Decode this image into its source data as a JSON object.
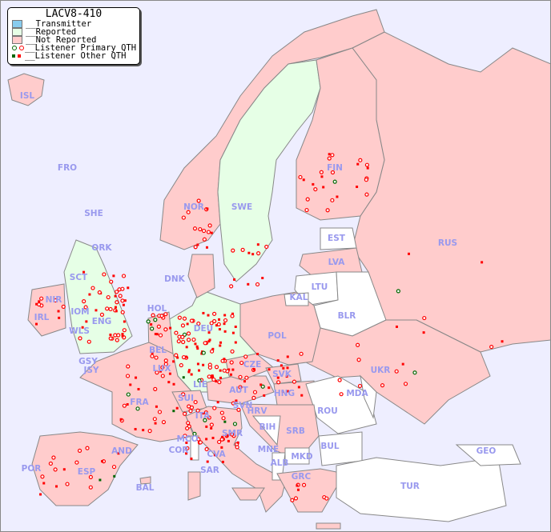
{
  "legend": {
    "title": "LACV8-410",
    "items": [
      {
        "label": "__Transmitter",
        "color": "#88ccee"
      },
      {
        "label": "__Reported",
        "color": "#e6ffe6"
      },
      {
        "label": "__Not Reported",
        "color": "#ffcccc"
      },
      {
        "label": "__Listener Primary QTH",
        "colors": [
          "#006600",
          "#ff0000"
        ]
      },
      {
        "label": "__Listener Other QTH",
        "colors": [
          "#006600",
          "#ff0000"
        ]
      }
    ]
  },
  "colors": {
    "sea": "#eeeeff",
    "reported": "#e6ffe6",
    "not_reported": "#ffcccc",
    "no_data": "#ffffff",
    "listener": "#ff0000",
    "listener_alt": "#006600",
    "label": "#9999ee"
  },
  "countries": [
    "ISL",
    "FRO",
    "SHE",
    "ORK",
    "SCT",
    "NIR",
    "IRL",
    "IOM",
    "ENG",
    "WLS",
    "GSY",
    "JSY",
    "HOL",
    "BEL",
    "LUX",
    "DNK",
    "DEU",
    "LIE",
    "SUI",
    "FRA",
    "AND",
    "ESP",
    "POR",
    "BAL",
    "MCO",
    "COR",
    "SAR",
    "ITA",
    "SMR",
    "CVA",
    "AUT",
    "SVN",
    "HRV",
    "BIH",
    "MNE",
    "ALB",
    "MKD",
    "SRB",
    "GRC",
    "BUL",
    "ROU",
    "MDA",
    "HNG",
    "SVK",
    "CZE",
    "POL",
    "KAL",
    "LTU",
    "LVA",
    "EST",
    "BLR",
    "UKR",
    "RUS",
    "FIN",
    "SWE",
    "NOR",
    "TUR",
    "GEO"
  ]
}
